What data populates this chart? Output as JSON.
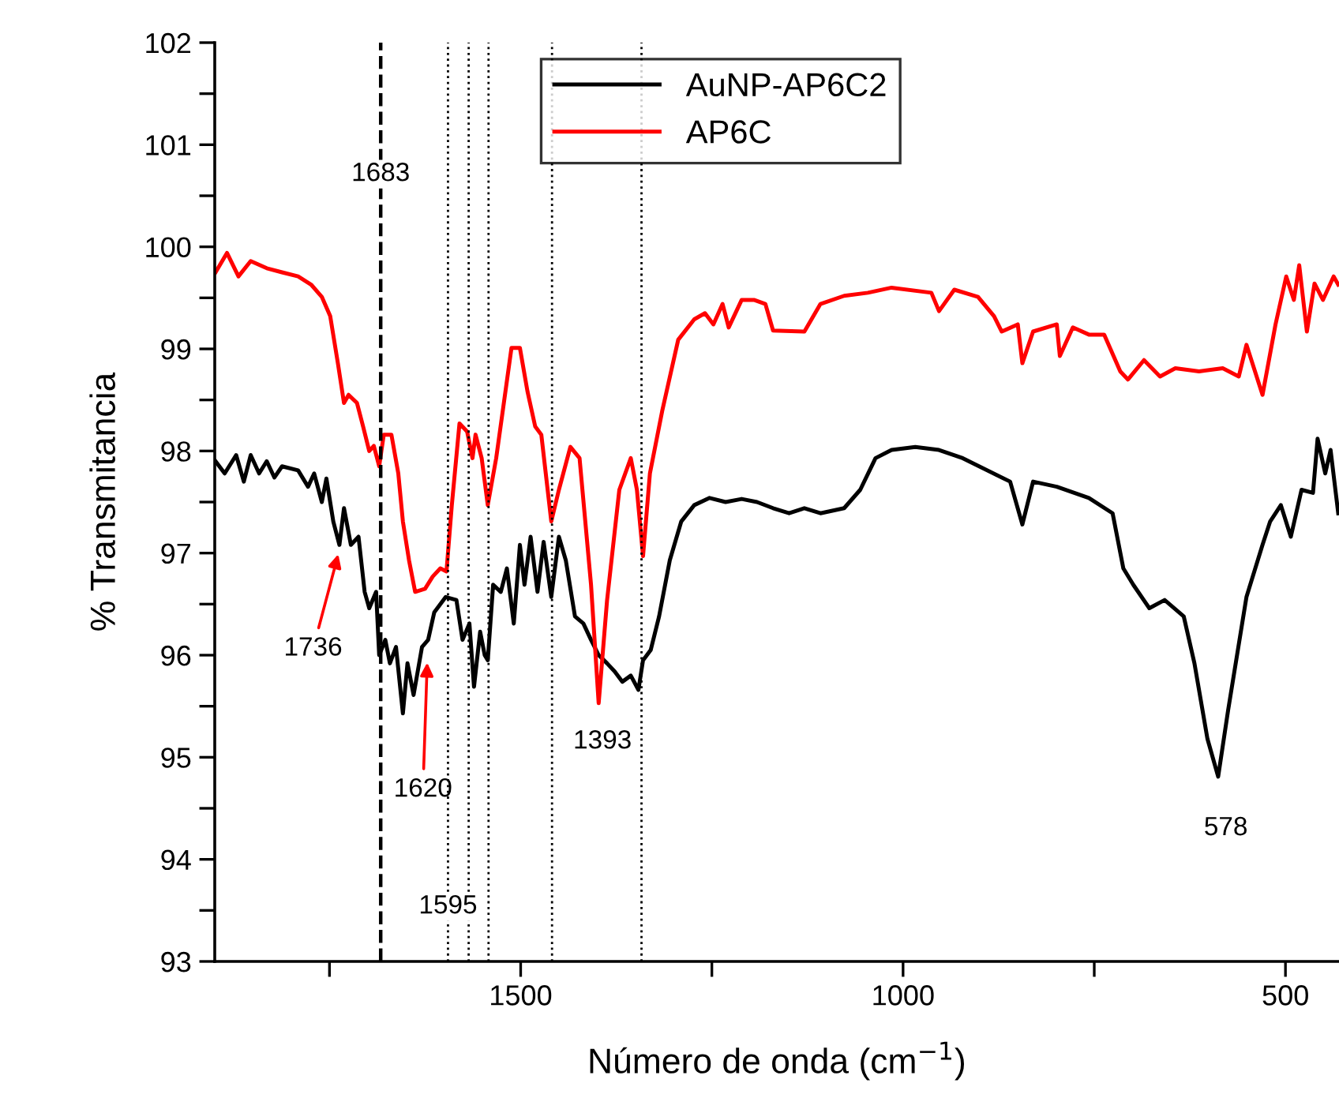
{
  "chart_data": {
    "type": "line",
    "xlabel": "Número de onda (cm$^{−1}$)",
    "ylabel": "% Transmitancia",
    "xlim": [
      1900,
      430
    ],
    "ylim": [
      93,
      102
    ],
    "xticks": [
      {
        "value": 1750,
        "label": null
      },
      1500,
      {
        "value": 1250,
        "label": null
      },
      1000,
      {
        "value": 750,
        "label": null
      },
      500
    ],
    "yticks": [
      93,
      {
        "value": 93.5,
        "label": null
      },
      94,
      {
        "value": 94.5,
        "label": null
      },
      95,
      {
        "value": 95.5,
        "label": null
      },
      96,
      {
        "value": 96.5,
        "label": null
      },
      97,
      {
        "value": 97.5,
        "label": null
      },
      98,
      {
        "value": 98.5,
        "label": null
      },
      99,
      {
        "value": 99.5,
        "label": null
      },
      100,
      {
        "value": 100.5,
        "label": null
      },
      101,
      {
        "value": 101.5,
        "label": null
      },
      102
    ],
    "grid": false,
    "legend": "top",
    "marker": "none",
    "line_style": "solid",
    "series": [
      {
        "name": "AuNP-AP6C2",
        "color": "#000000",
        "x": [
          1899,
          1887,
          1872,
          1862,
          1853,
          1842,
          1832,
          1822,
          1812,
          1791,
          1778,
          1770,
          1760,
          1754,
          1745,
          1737,
          1731,
          1722,
          1712,
          1704,
          1698,
          1689,
          1685,
          1677,
          1671,
          1663,
          1654,
          1648,
          1640,
          1629,
          1621,
          1613,
          1598,
          1584,
          1576,
          1567,
          1561,
          1553,
          1547,
          1543,
          1536,
          1526,
          1518,
          1509,
          1501,
          1495,
          1487,
          1478,
          1470,
          1460,
          1450,
          1441,
          1429,
          1418,
          1408,
          1398,
          1387,
          1377,
          1367,
          1356,
          1346,
          1340,
          1330,
          1319,
          1305,
          1290,
          1273,
          1253,
          1232,
          1211,
          1191,
          1170,
          1149,
          1129,
          1108,
          1077,
          1056,
          1036,
          1015,
          984,
          953,
          922,
          860,
          844,
          830,
          799,
          757,
          726,
          712,
          699,
          678,
          658,
          633,
          619,
          602,
          588,
          575,
          551,
          530,
          520,
          506,
          493,
          479,
          464,
          458,
          448,
          441,
          431
        ],
        "values": [
          97.9,
          97.78,
          97.96,
          97.7,
          97.96,
          97.78,
          97.9,
          97.74,
          97.85,
          97.81,
          97.65,
          97.78,
          97.5,
          97.73,
          97.31,
          97.08,
          97.44,
          97.08,
          97.16,
          96.62,
          96.46,
          96.62,
          96.0,
          96.15,
          95.92,
          96.08,
          95.43,
          95.92,
          95.61,
          96.08,
          96.15,
          96.42,
          96.57,
          96.54,
          96.15,
          96.31,
          95.69,
          96.23,
          96.0,
          95.95,
          96.69,
          96.62,
          96.85,
          96.31,
          97.08,
          96.69,
          97.16,
          96.62,
          97.11,
          96.57,
          97.16,
          96.93,
          96.38,
          96.31,
          96.15,
          96.0,
          95.92,
          95.84,
          95.74,
          95.8,
          95.66,
          95.95,
          96.05,
          96.38,
          96.93,
          97.31,
          97.47,
          97.54,
          97.5,
          97.53,
          97.5,
          97.44,
          97.39,
          97.44,
          97.39,
          97.44,
          97.62,
          97.93,
          98.01,
          98.04,
          98.01,
          97.93,
          97.7,
          97.28,
          97.7,
          97.65,
          97.54,
          97.39,
          96.85,
          96.69,
          96.46,
          96.54,
          96.38,
          95.92,
          95.18,
          94.81,
          95.46,
          96.57,
          97.08,
          97.31,
          97.47,
          97.16,
          97.62,
          97.59,
          98.12,
          97.78,
          98.01,
          97.39
        ]
      },
      {
        "name": "AP6C",
        "color": "#ff0000",
        "x": [
          1899,
          1884,
          1869,
          1853,
          1832,
          1812,
          1791,
          1774,
          1760,
          1749,
          1739,
          1731,
          1725,
          1714,
          1706,
          1698,
          1692,
          1685,
          1679,
          1669,
          1660,
          1654,
          1646,
          1638,
          1625,
          1615,
          1605,
          1597,
          1590,
          1580,
          1570,
          1563,
          1559,
          1551,
          1543,
          1532,
          1522,
          1512,
          1501,
          1491,
          1481,
          1473,
          1460,
          1450,
          1435,
          1423,
          1408,
          1398,
          1387,
          1371,
          1356,
          1348,
          1340,
          1331,
          1315,
          1294,
          1273,
          1259,
          1248,
          1236,
          1228,
          1211,
          1195,
          1180,
          1170,
          1129,
          1108,
          1077,
          1046,
          1015,
          963,
          953,
          933,
          902,
          881,
          871,
          850,
          844,
          830,
          799,
          795,
          778,
          757,
          737,
          716,
          706,
          685,
          664,
          644,
          613,
          582,
          561,
          551,
          530,
          513,
          499,
          489,
          482,
          472,
          462,
          451,
          437,
          431
        ],
        "values": [
          99.75,
          99.94,
          99.71,
          99.86,
          99.79,
          99.75,
          99.71,
          99.63,
          99.51,
          99.32,
          98.86,
          98.47,
          98.55,
          98.47,
          98.24,
          98.0,
          98.05,
          97.85,
          98.16,
          98.16,
          97.78,
          97.31,
          96.93,
          96.62,
          96.65,
          96.77,
          96.85,
          96.82,
          97.47,
          98.27,
          98.19,
          97.93,
          98.16,
          97.93,
          97.47,
          97.93,
          98.47,
          99.01,
          99.01,
          98.58,
          98.24,
          98.16,
          97.31,
          97.62,
          98.04,
          97.93,
          96.69,
          95.53,
          96.54,
          97.62,
          97.93,
          97.62,
          96.97,
          97.78,
          98.39,
          99.09,
          99.29,
          99.35,
          99.24,
          99.44,
          99.21,
          99.48,
          99.48,
          99.44,
          99.18,
          99.17,
          99.44,
          99.52,
          99.55,
          99.6,
          99.55,
          99.37,
          99.58,
          99.51,
          99.32,
          99.17,
          99.24,
          98.86,
          99.17,
          99.24,
          98.93,
          99.21,
          99.14,
          99.14,
          98.78,
          98.7,
          98.89,
          98.73,
          98.81,
          98.78,
          98.81,
          98.73,
          99.04,
          98.55,
          99.24,
          99.71,
          99.48,
          99.82,
          99.17,
          99.64,
          99.48,
          99.71,
          99.63
        ]
      }
    ],
    "ref_lines": [
      {
        "axis": "x",
        "value": 1683,
        "label": "1683",
        "line_style": "dashed",
        "color": "#000000"
      },
      {
        "axis": "x",
        "value": 1595,
        "label": "1595",
        "line_style": "dotted",
        "color": "#000000"
      },
      {
        "axis": "x",
        "value": 1568,
        "line_style": "dotted",
        "color": "#000000"
      },
      {
        "axis": "x",
        "value": 1542,
        "line_style": "dotted",
        "color": "#000000"
      },
      {
        "axis": "x",
        "value": 1459,
        "line_style": "dotted",
        "color": "#000000"
      },
      {
        "axis": "x",
        "value": 1342,
        "line_style": "dotted",
        "color": "#000000"
      }
    ],
    "annotations": [
      {
        "text": "1736",
        "x": 1737,
        "y": 97.03
      },
      {
        "text": "1620",
        "x": 1622,
        "y": 95.97
      },
      {
        "text": "1393",
        "x": 1393,
        "y": 95.53
      },
      {
        "text": "578",
        "x": 578,
        "y": 94.81
      }
    ]
  }
}
